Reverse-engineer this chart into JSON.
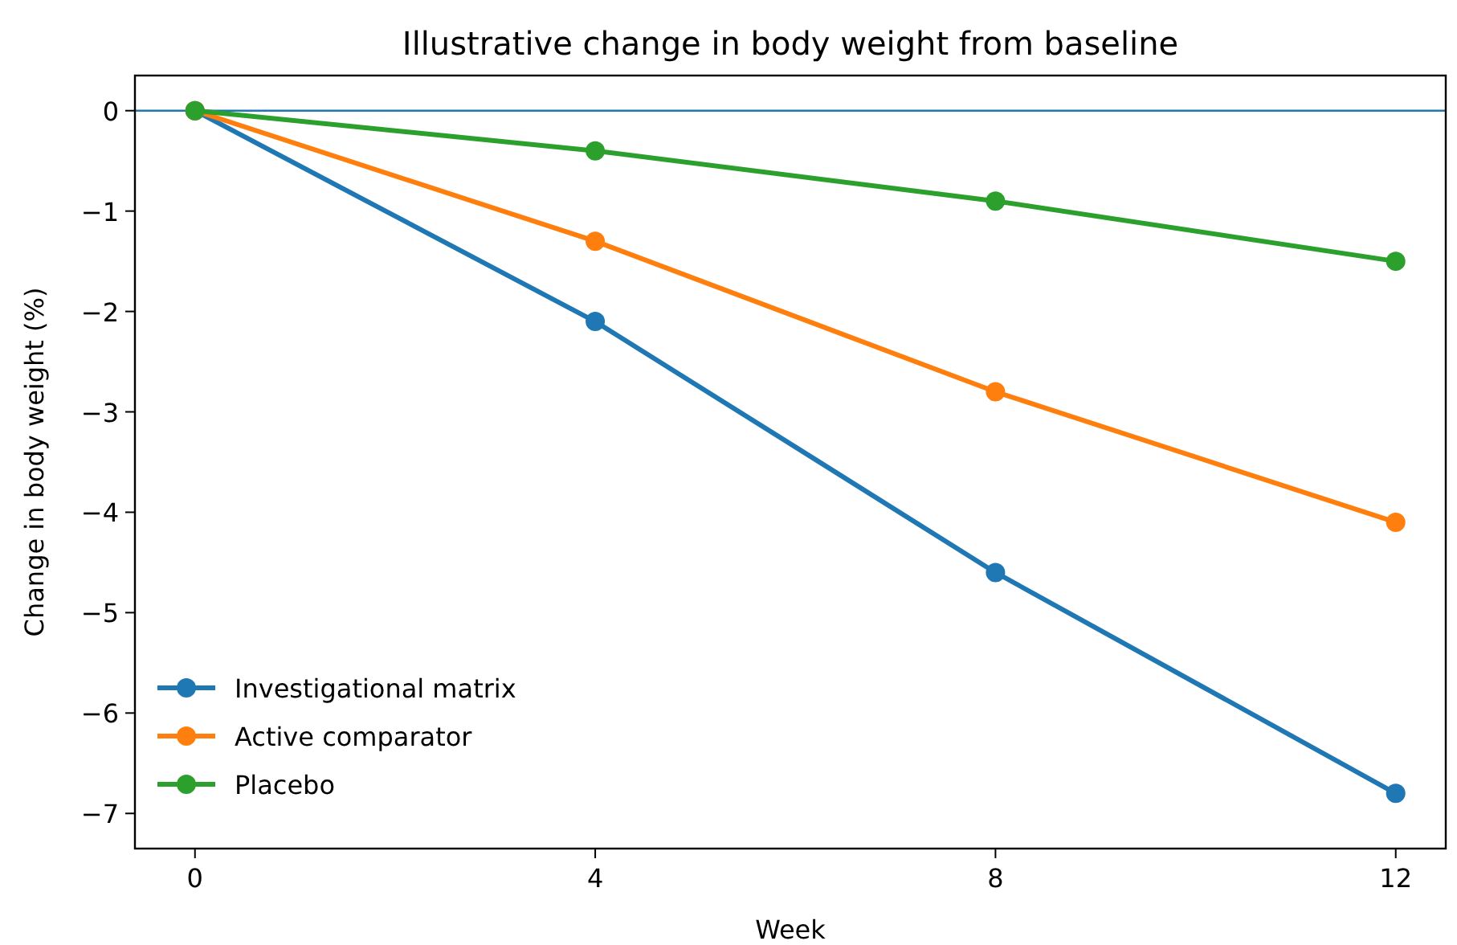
{
  "chart_data": {
    "type": "line",
    "title": "Illustrative change in body weight from baseline",
    "xlabel": "Week",
    "ylabel": "Change in body weight (%)",
    "x": [
      0,
      4,
      8,
      12
    ],
    "series": [
      {
        "name": "Investigational matrix",
        "color": "#1f77b4",
        "values": [
          0,
          -2.1,
          -4.6,
          -6.8
        ]
      },
      {
        "name": "Active comparator",
        "color": "#ff7f0e",
        "values": [
          0,
          -1.3,
          -2.8,
          -4.1
        ]
      },
      {
        "name": "Placebo",
        "color": "#2ca02c",
        "values": [
          0,
          -0.4,
          -0.9,
          -1.5
        ]
      }
    ],
    "xlim": [
      -0.6,
      12.5
    ],
    "xticks": [
      0,
      4,
      8,
      12
    ],
    "ylim": [
      -7.35,
      0.35
    ],
    "yticks": [
      0,
      -1,
      -2,
      -3,
      -4,
      -5,
      -6,
      -7
    ],
    "ref_lines": [
      {
        "axis": "y",
        "value": 0,
        "color": "#1f77b4"
      }
    ],
    "marker": "circle",
    "line_style": "solid",
    "legend": "bottom left",
    "grid": false
  }
}
